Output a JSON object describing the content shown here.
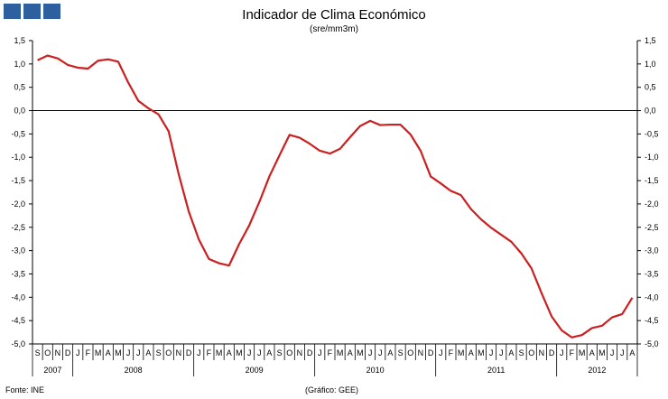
{
  "header": {
    "title": "Indicador de Clima Económico",
    "subtitle": "(sre/mm3m)"
  },
  "logo": {
    "colors": [
      "#2e5f9e",
      "#2e5f9e",
      "#2e5f9e"
    ]
  },
  "footer": {
    "source": "Fonte: INE",
    "credit": "(Gráfico: GEE)"
  },
  "chart_data": {
    "type": "line",
    "title": "Indicador de Clima Económico",
    "subtitle": "(sre/mm3m)",
    "ylim": [
      -5.0,
      1.5
    ],
    "yticks": [
      1.5,
      1.0,
      0.5,
      0.0,
      -0.5,
      -1.0,
      -1.5,
      -2.0,
      -2.5,
      -3.0,
      -3.5,
      -4.0,
      -4.5,
      -5.0
    ],
    "ytick_labels": [
      "1,5",
      "1,0",
      "0,5",
      "0,0",
      "-0,5",
      "-1,0",
      "-1,5",
      "-2,0",
      "-2,5",
      "-3,0",
      "-3,5",
      "-4,0",
      "-4,5",
      "-5,0"
    ],
    "grid": false,
    "legend": "none",
    "color": "#cc1f1f",
    "x_month_labels": [
      "S",
      "O",
      "N",
      "D",
      "J",
      "F",
      "M",
      "A",
      "M",
      "J",
      "J",
      "A",
      "S",
      "O",
      "N",
      "D",
      "J",
      "F",
      "M",
      "A",
      "M",
      "J",
      "J",
      "A",
      "S",
      "O",
      "N",
      "D",
      "J",
      "F",
      "M",
      "A",
      "M",
      "J",
      "J",
      "A",
      "S",
      "O",
      "N",
      "D",
      "J",
      "F",
      "M",
      "A",
      "M",
      "J",
      "J",
      "A",
      "S",
      "O",
      "N",
      "D",
      "J",
      "F",
      "M",
      "A",
      "M",
      "J",
      "J",
      "A"
    ],
    "x_years": [
      {
        "label": "2007",
        "start": 0,
        "count": 4
      },
      {
        "label": "2008",
        "start": 4,
        "count": 12
      },
      {
        "label": "2009",
        "start": 16,
        "count": 12
      },
      {
        "label": "2010",
        "start": 28,
        "count": 12
      },
      {
        "label": "2011",
        "start": 40,
        "count": 12
      },
      {
        "label": "2012",
        "start": 52,
        "count": 8
      }
    ],
    "x": [
      "2007-09",
      "2007-10",
      "2007-11",
      "2007-12",
      "2008-01",
      "2008-02",
      "2008-03",
      "2008-04",
      "2008-05",
      "2008-06",
      "2008-07",
      "2008-08",
      "2008-09",
      "2008-10",
      "2008-11",
      "2008-12",
      "2009-01",
      "2009-02",
      "2009-03",
      "2009-04",
      "2009-05",
      "2009-06",
      "2009-07",
      "2009-08",
      "2009-09",
      "2009-10",
      "2009-11",
      "2009-12",
      "2010-01",
      "2010-02",
      "2010-03",
      "2010-04",
      "2010-05",
      "2010-06",
      "2010-07",
      "2010-08",
      "2010-09",
      "2010-10",
      "2010-11",
      "2010-12",
      "2011-01",
      "2011-02",
      "2011-03",
      "2011-04",
      "2011-05",
      "2011-06",
      "2011-07",
      "2011-08",
      "2011-09",
      "2011-10",
      "2011-11",
      "2011-12",
      "2012-01",
      "2012-02",
      "2012-03",
      "2012-04",
      "2012-05",
      "2012-06",
      "2012-07",
      "2012-08"
    ],
    "values": [
      1.08,
      1.18,
      1.12,
      0.98,
      0.92,
      0.9,
      1.07,
      1.1,
      1.05,
      0.6,
      0.21,
      0.05,
      -0.08,
      -0.44,
      -1.36,
      -2.16,
      -2.76,
      -3.18,
      -3.27,
      -3.32,
      -2.86,
      -2.46,
      -1.96,
      -1.41,
      -0.96,
      -0.52,
      -0.58,
      -0.71,
      -0.86,
      -0.92,
      -0.82,
      -0.57,
      -0.33,
      -0.22,
      -0.31,
      -0.3,
      -0.3,
      -0.51,
      -0.86,
      -1.41,
      -1.56,
      -1.72,
      -1.81,
      -2.11,
      -2.33,
      -2.51,
      -2.66,
      -2.81,
      -3.06,
      -3.38,
      -3.91,
      -4.41,
      -4.71,
      -4.86,
      -4.81,
      -4.66,
      -4.61,
      -4.43,
      -4.36,
      -4.01
    ]
  }
}
